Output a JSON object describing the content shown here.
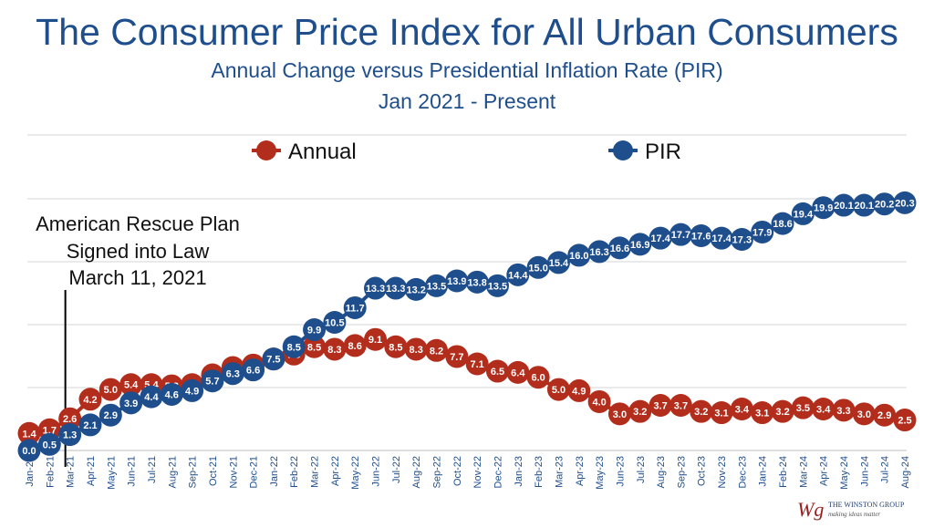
{
  "chart_data": {
    "type": "line",
    "title": "The Consumer Price Index for All Urban Consumers",
    "subtitle": "Annual Change versus Presidential Inflation Rate (PIR)",
    "subtitle2": "Jan 2021 - Present",
    "xlabel": "",
    "ylabel": "",
    "ylim": [
      0,
      21
    ],
    "grid": true,
    "legend_position": "top",
    "categories": [
      "Jan-21",
      "Feb-21",
      "Mar-21",
      "Apr-21",
      "May-21",
      "Jun-21",
      "Jul-21",
      "Aug-21",
      "Sep-21",
      "Oct-21",
      "Nov-21",
      "Dec-21",
      "Jan-22",
      "Feb-22",
      "Mar-22",
      "Apr-22",
      "May-22",
      "Jun-22",
      "Jul-22",
      "Aug-22",
      "Sep-22",
      "Oct-22",
      "Nov-22",
      "Dec-22",
      "Jan-23",
      "Feb-23",
      "Mar-23",
      "Apr-23",
      "May-23",
      "Jun-23",
      "Jul-23",
      "Aug-23",
      "Sep-23",
      "Oct-23",
      "Nov-23",
      "Dec-23",
      "Jan-24",
      "Feb-24",
      "Mar-24",
      "Apr-24",
      "May-24",
      "Jun-24",
      "Jul-24",
      "Aug-24"
    ],
    "series": [
      {
        "name": "Annual",
        "color": "#b22d1c",
        "values": [
          1.4,
          1.7,
          2.6,
          4.2,
          5.0,
          5.4,
          5.4,
          5.3,
          5.4,
          6.2,
          6.8,
          7.0,
          7.5,
          7.9,
          8.5,
          8.3,
          8.6,
          9.1,
          8.5,
          8.3,
          8.2,
          7.7,
          7.1,
          6.5,
          6.4,
          6.0,
          5.0,
          4.9,
          4.0,
          3.0,
          3.2,
          3.7,
          3.7,
          3.2,
          3.1,
          3.4,
          3.1,
          3.2,
          3.5,
          3.4,
          3.3,
          3.0,
          2.9,
          2.5
        ]
      },
      {
        "name": "PIR",
        "color": "#1f4e8c",
        "values": [
          0.0,
          0.5,
          1.3,
          2.1,
          2.9,
          3.9,
          4.4,
          4.6,
          4.9,
          5.7,
          6.3,
          6.6,
          7.5,
          8.5,
          9.9,
          10.5,
          11.7,
          13.3,
          13.3,
          13.2,
          13.5,
          13.9,
          13.8,
          13.5,
          14.4,
          15.0,
          15.4,
          16.0,
          16.3,
          16.6,
          16.9,
          17.4,
          17.7,
          17.6,
          17.4,
          17.3,
          17.9,
          18.6,
          19.4,
          19.9,
          20.1,
          20.1,
          20.2,
          20.3
        ]
      }
    ],
    "annotation": {
      "lines": [
        "American Rescue Plan",
        "Signed into Law",
        "March 11, 2021"
      ],
      "at_category": "Mar-21"
    }
  },
  "logo": {
    "mark": "Wg",
    "name": "THE WINSTON GROUP",
    "tagline": "making ideas matter"
  }
}
